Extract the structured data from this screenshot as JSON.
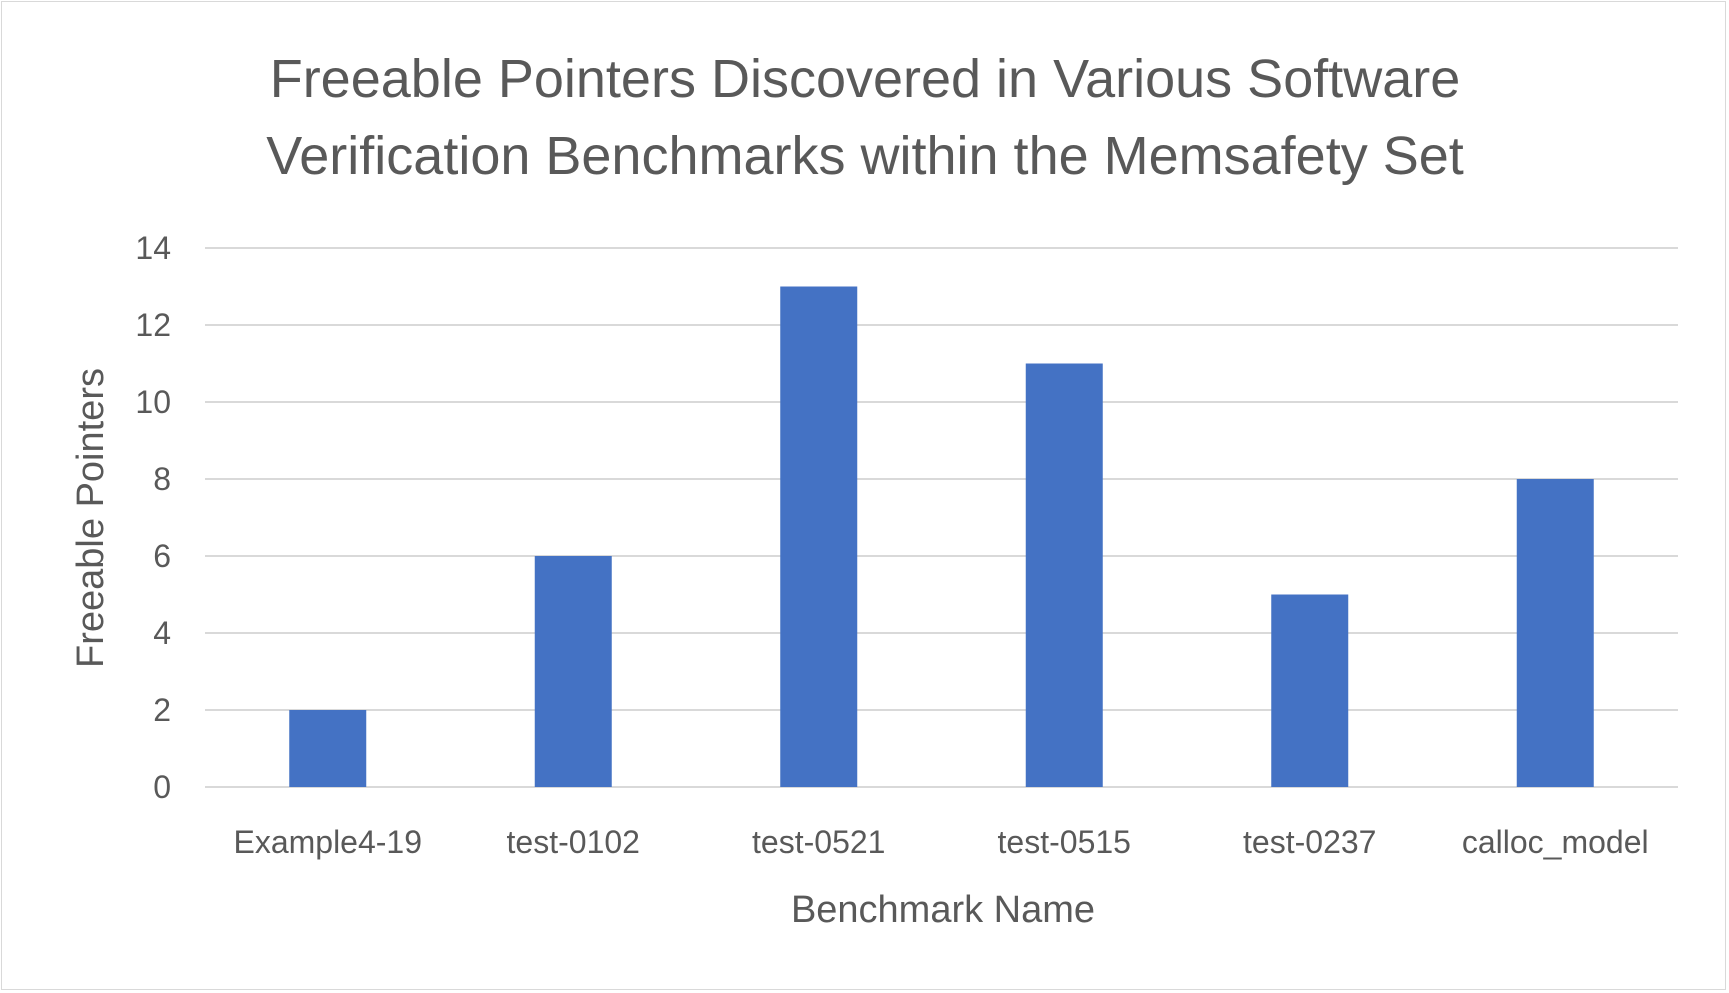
{
  "chart_data": {
    "type": "bar",
    "title_lines": [
      "Freeable Pointers Discovered in Various Software",
      "Verification Benchmarks within the Memsafety Set"
    ],
    "xlabel": "Benchmark Name",
    "ylabel": "Freeable Pointers",
    "categories": [
      "Example4-19",
      "test-0102",
      "test-0521",
      "test-0515",
      "test-0237",
      "calloc_model"
    ],
    "values": [
      2,
      6,
      13,
      11,
      5,
      8
    ],
    "ylim": [
      0,
      14
    ],
    "yticks": [
      "0",
      "2",
      "4",
      "6",
      "8",
      "10",
      "12",
      "14"
    ],
    "grid": true,
    "legend": "none",
    "bar_color": "#4472C4",
    "grid_color": "#d9d9d9"
  }
}
